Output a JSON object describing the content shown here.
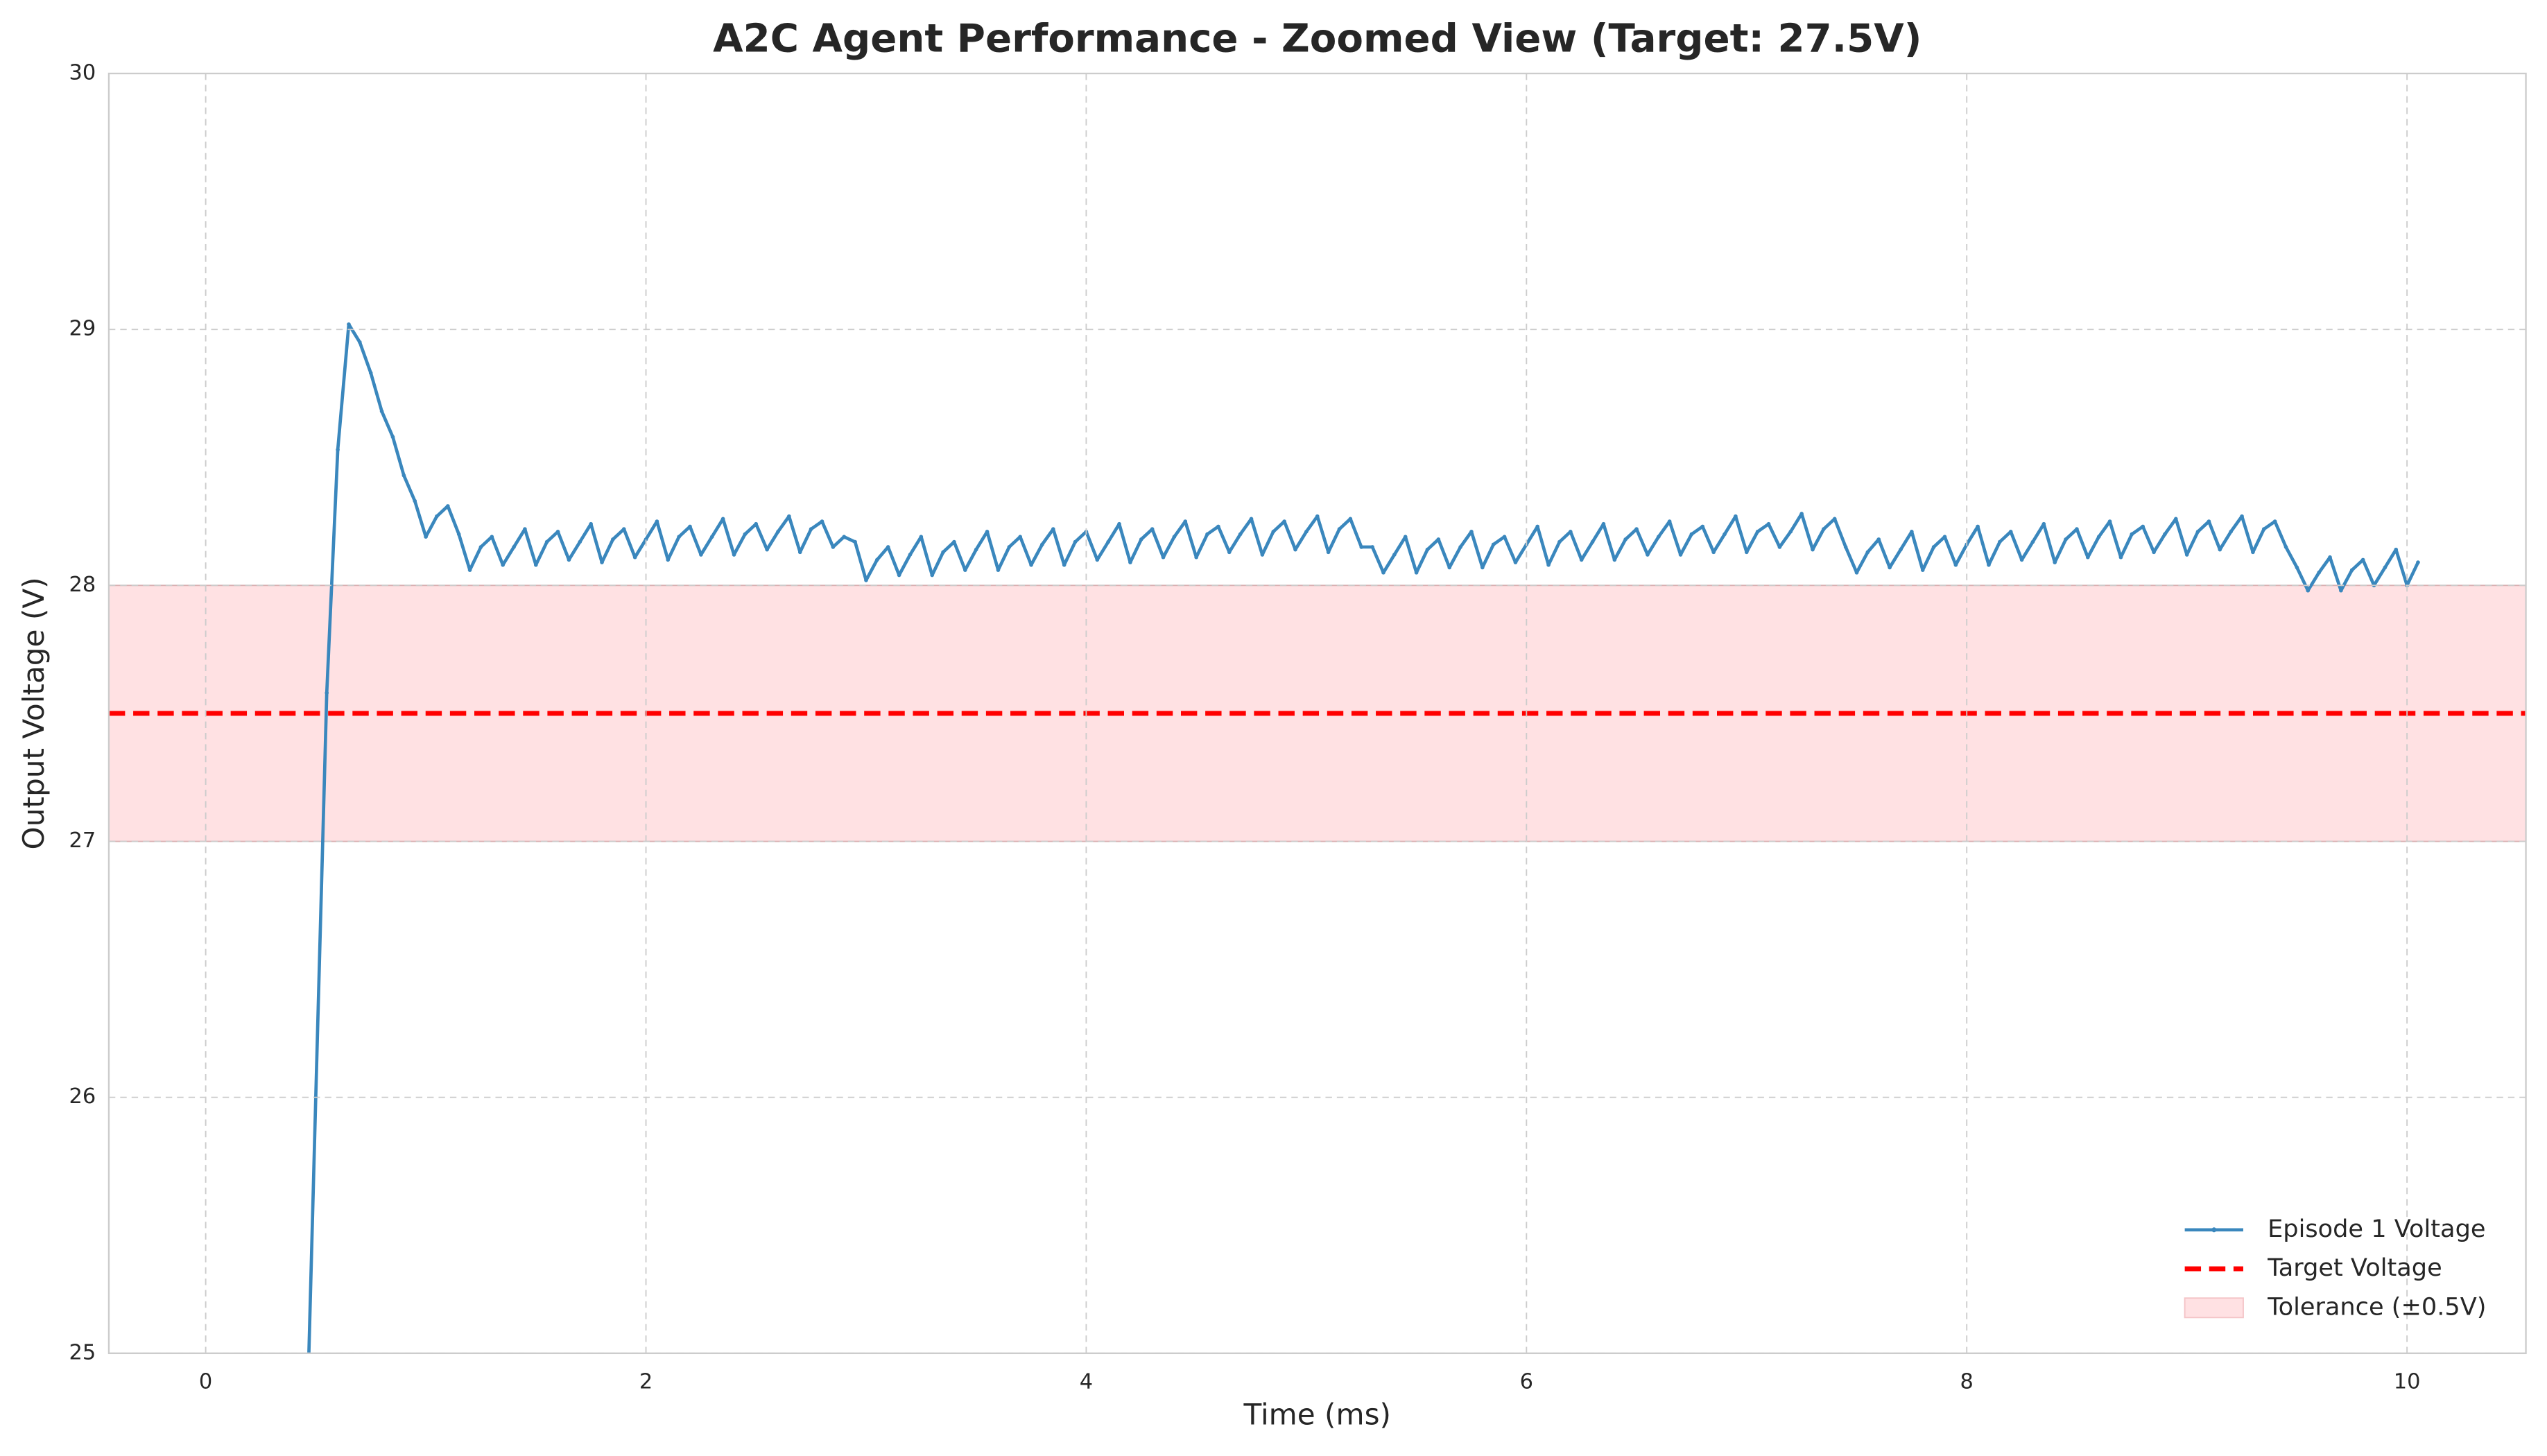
{
  "chart_data": {
    "type": "line",
    "title": "A2C Agent Performance - Zoomed View (Target: 27.5V)",
    "x_label": "Time (ms)",
    "y_label": "Output Voltage (V)",
    "xlim": [
      -0.44,
      10.54
    ],
    "ylim": [
      25,
      30
    ],
    "xticks": [
      0,
      2,
      4,
      6,
      8,
      10
    ],
    "yticks": [
      25,
      26,
      27,
      28,
      29,
      30
    ],
    "grid": true,
    "legend": "lower right",
    "series": [
      {
        "name": "Episode 1 Voltage",
        "color": "#3a87bd",
        "x": [
          0.45,
          0.5,
          0.55,
          0.6,
          0.65,
          0.7,
          0.75,
          0.8,
          0.85,
          0.9,
          0.95,
          1.0,
          1.05,
          1.1,
          1.15,
          1.2,
          1.25,
          1.3,
          1.35,
          1.4,
          1.45,
          1.5,
          1.55,
          1.6,
          1.65,
          1.7,
          1.75,
          1.8,
          1.85,
          1.9,
          1.95,
          2.0,
          2.05,
          2.1,
          2.15,
          2.2,
          2.25,
          2.3,
          2.35,
          2.4,
          2.45,
          2.5,
          2.55,
          2.6,
          2.65,
          2.7,
          2.75,
          2.8,
          2.85,
          2.9,
          2.95,
          3.0,
          3.05,
          3.1,
          3.15,
          3.2,
          3.25,
          3.3,
          3.35,
          3.4,
          3.45,
          3.5,
          3.55,
          3.6,
          3.65,
          3.7,
          3.75,
          3.8,
          3.85,
          3.9,
          3.95,
          4.0,
          4.05,
          4.1,
          4.15,
          4.2,
          4.25,
          4.3,
          4.35,
          4.4,
          4.45,
          4.5,
          4.55,
          4.6,
          4.65,
          4.7,
          4.75,
          4.8,
          4.85,
          4.9,
          4.95,
          5.0,
          5.05,
          5.1,
          5.15,
          5.2,
          5.25,
          5.3,
          5.35,
          5.4,
          5.45,
          5.5,
          5.55,
          5.6,
          5.65,
          5.7,
          5.75,
          5.8,
          5.85,
          5.9,
          5.95,
          6.0,
          6.05,
          6.1,
          6.15,
          6.2,
          6.25,
          6.3,
          6.35,
          6.4,
          6.45,
          6.5,
          6.55,
          6.6,
          6.65,
          6.7,
          6.75,
          6.8,
          6.85,
          6.9,
          6.95,
          7.0,
          7.05,
          7.1,
          7.15,
          7.2,
          7.25,
          7.3,
          7.35,
          7.4,
          7.45,
          7.5,
          7.55,
          7.6,
          7.65,
          7.7,
          7.75,
          7.8,
          7.85,
          7.9,
          7.95,
          8.0,
          8.05,
          8.1,
          8.15,
          8.2,
          8.25,
          8.3,
          8.35,
          8.4,
          8.45,
          8.5,
          8.55,
          8.6,
          8.65,
          8.7,
          8.75,
          8.8,
          8.85,
          8.9,
          8.95,
          9.0,
          9.05,
          9.1,
          9.15,
          9.2,
          9.25,
          9.3,
          9.35,
          9.4,
          9.45,
          9.5,
          9.55,
          9.6,
          9.65,
          9.7,
          9.75,
          9.8,
          9.85,
          9.9,
          9.95,
          10.0,
          10.05
        ],
        "values": [
          24.4,
          26.0,
          27.58,
          28.53,
          29.02,
          28.95,
          28.83,
          28.68,
          28.58,
          28.43,
          28.33,
          28.19,
          28.27,
          28.31,
          28.2,
          28.06,
          28.15,
          28.19,
          28.08,
          28.15,
          28.22,
          28.08,
          28.17,
          28.21,
          28.1,
          28.17,
          28.24,
          28.09,
          28.18,
          28.22,
          28.11,
          28.18,
          28.25,
          28.1,
          28.19,
          28.23,
          28.12,
          28.19,
          28.26,
          28.12,
          28.2,
          28.24,
          28.14,
          28.21,
          28.27,
          28.13,
          28.22,
          28.25,
          28.15,
          28.19,
          28.17,
          28.02,
          28.1,
          28.15,
          28.04,
          28.12,
          28.19,
          28.04,
          28.13,
          28.17,
          28.06,
          28.14,
          28.21,
          28.06,
          28.15,
          28.19,
          28.08,
          28.16,
          28.22,
          28.08,
          28.17,
          28.21,
          28.1,
          28.17,
          28.24,
          28.09,
          28.18,
          28.22,
          28.11,
          28.19,
          28.25,
          28.11,
          28.2,
          28.23,
          28.13,
          28.2,
          28.26,
          28.12,
          28.21,
          28.25,
          28.14,
          28.21,
          28.27,
          28.13,
          28.22,
          28.26,
          28.15,
          28.15,
          28.05,
          28.12,
          28.19,
          28.05,
          28.14,
          28.18,
          28.07,
          28.15,
          28.21,
          28.07,
          28.16,
          28.19,
          28.09,
          28.16,
          28.23,
          28.08,
          28.17,
          28.21,
          28.1,
          28.17,
          28.24,
          28.1,
          28.18,
          28.22,
          28.12,
          28.19,
          28.25,
          28.12,
          28.2,
          28.23,
          28.13,
          28.2,
          28.27,
          28.13,
          28.21,
          28.24,
          28.15,
          28.21,
          28.28,
          28.14,
          28.22,
          28.26,
          28.15,
          28.05,
          28.13,
          28.18,
          28.07,
          28.14,
          28.21,
          28.06,
          28.15,
          28.19,
          28.08,
          28.16,
          28.23,
          28.08,
          28.17,
          28.21,
          28.1,
          28.17,
          28.24,
          28.09,
          28.18,
          28.22,
          28.11,
          28.19,
          28.25,
          28.11,
          28.2,
          28.23,
          28.13,
          28.2,
          28.26,
          28.12,
          28.21,
          28.25,
          28.14,
          28.21,
          28.27,
          28.13,
          28.22,
          28.25,
          28.15,
          28.07,
          27.98,
          28.05,
          28.11,
          27.98,
          28.06,
          28.1,
          28.0,
          28.07,
          28.14,
          28.0,
          28.09
        ]
      }
    ],
    "reference_lines": [
      {
        "name": "Target Voltage",
        "value": 27.5,
        "color": "#ff0000"
      }
    ],
    "bands": [
      {
        "name": "Tolerance (±0.5V)",
        "range": [
          27,
          28
        ],
        "color": "#ffe1e3"
      }
    ]
  }
}
